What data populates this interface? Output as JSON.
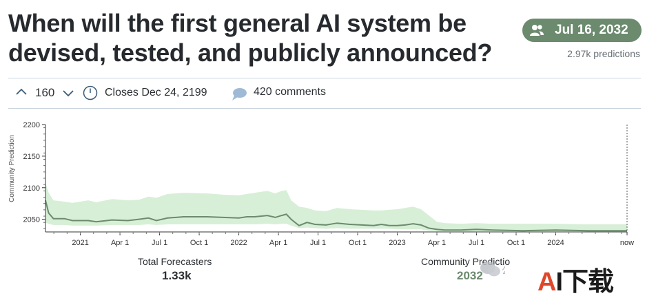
{
  "question": {
    "title": "When will the first general AI system be devised, tested, and publicly announced?"
  },
  "prediction": {
    "date": "Jul 16, 2032",
    "count": "2.97k predictions",
    "icon": "users-icon",
    "accent": "#6b8a6e"
  },
  "meta": {
    "votes": "160",
    "closes": "Closes Dec 24, 2199",
    "comments": "420 comments"
  },
  "stats": {
    "forecasters_label": "Total Forecasters",
    "forecasters_value": "1.33k",
    "community_label": "Community Predictio",
    "community_value": "2032"
  },
  "watermark": {
    "wechat_text": "公",
    "a": "A",
    "rest": "I下载"
  },
  "chart_data": {
    "type": "area",
    "ylabel": "Community Prediction",
    "xlabel": "",
    "ylim": [
      2030,
      2200
    ],
    "yticks": [
      "2200",
      "2150",
      "2100",
      "2050"
    ],
    "ytick_values": [
      2200,
      2150,
      2100,
      2050
    ],
    "xticks": [
      "2021",
      "Apr 1",
      "Jul 1",
      "Oct 1",
      "2022",
      "Apr 1",
      "Jul 1",
      "Oct 1",
      "2023",
      "Apr 1",
      "Jul 1",
      "Oct 1",
      "2024",
      "now"
    ],
    "xtick_values": [
      2021.0,
      2021.25,
      2021.5,
      2021.75,
      2022.0,
      2022.25,
      2022.5,
      2022.75,
      2023.0,
      2023.25,
      2023.5,
      2023.75,
      2024.0,
      2024.45
    ],
    "xlim": [
      2020.78,
      2024.45
    ],
    "line_color": "#6b8a6e",
    "band_color": "#d7efd6",
    "series": [
      {
        "x": [
          2020.78,
          2020.8,
          2020.83,
          2020.9,
          2020.95,
          2021.05,
          2021.1,
          2021.2,
          2021.3,
          2021.37,
          2021.43,
          2021.48,
          2021.55,
          2021.65,
          2021.8,
          2021.9,
          2022.0,
          2022.05,
          2022.1,
          2022.18,
          2022.23,
          2022.27,
          2022.3,
          2022.33,
          2022.38,
          2022.43,
          2022.48,
          2022.55,
          2022.62,
          2022.7,
          2022.85,
          2022.9,
          2022.95,
          2023.0,
          2023.05,
          2023.1,
          2023.15,
          2023.2,
          2023.25,
          2023.3,
          2023.4,
          2023.5,
          2023.6,
          2023.8,
          2024.0,
          2024.2,
          2024.45
        ],
        "y": [
          2080,
          2060,
          2051,
          2051,
          2048,
          2048,
          2046,
          2049,
          2048,
          2050,
          2052,
          2048,
          2052,
          2054,
          2054,
          2053,
          2052,
          2054,
          2054,
          2056,
          2053,
          2056,
          2058,
          2050,
          2040,
          2045,
          2042,
          2041,
          2044,
          2042,
          2040,
          2042,
          2040,
          2040,
          2041,
          2043,
          2041,
          2036,
          2034,
          2033,
          2033,
          2034,
          2033,
          2032,
          2033,
          2032,
          2032
        ],
        "lower": [
          2045,
          2043,
          2041,
          2041,
          2040,
          2040,
          2040,
          2041,
          2041,
          2041,
          2042,
          2041,
          2042,
          2042,
          2042,
          2042,
          2042,
          2042,
          2042,
          2043,
          2042,
          2043,
          2043,
          2040,
          2036,
          2037,
          2036,
          2035,
          2036,
          2035,
          2035,
          2035,
          2035,
          2034,
          2034,
          2034,
          2034,
          2032,
          2031,
          2031,
          2031,
          2031,
          2031,
          2031,
          2031,
          2031,
          2031
        ],
        "upper": [
          2108,
          2092,
          2080,
          2078,
          2076,
          2080,
          2077,
          2082,
          2080,
          2081,
          2086,
          2084,
          2090,
          2092,
          2091,
          2089,
          2088,
          2090,
          2092,
          2095,
          2091,
          2095,
          2096,
          2080,
          2070,
          2068,
          2064,
          2063,
          2068,
          2066,
          2064,
          2064,
          2065,
          2066,
          2068,
          2070,
          2066,
          2056,
          2046,
          2044,
          2043,
          2044,
          2043,
          2043,
          2043,
          2042,
          2042
        ]
      }
    ]
  }
}
